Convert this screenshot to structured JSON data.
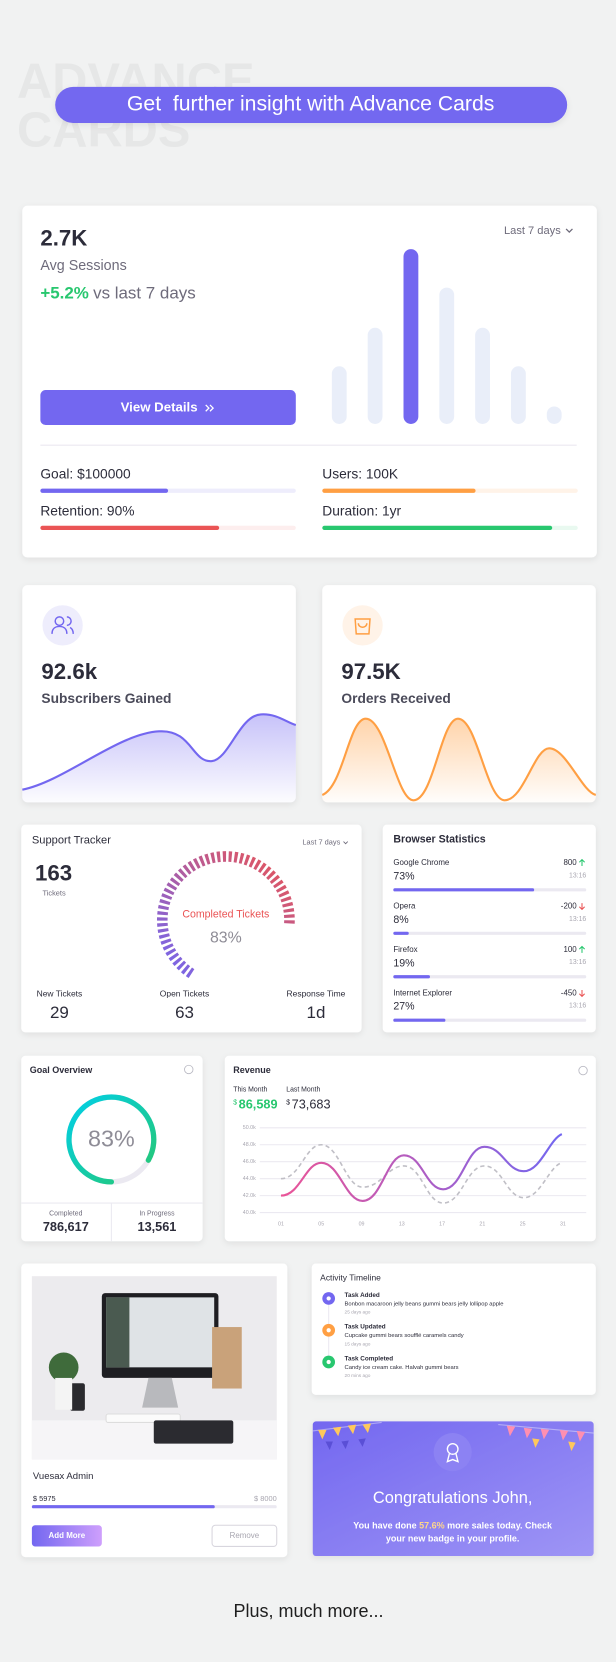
{
  "header": {
    "watermark": [
      "ADVANCE",
      "CARDS"
    ],
    "banner": "Get  further insight with Advance Cards"
  },
  "sessions": {
    "value": "2.7K",
    "label": "Avg Sessions",
    "change": "+5.2%",
    "comparison": "vs last 7 days",
    "period": "Last 7 days",
    "button": "View Details",
    "bars": [
      33,
      55,
      100,
      78,
      55,
      33,
      10
    ],
    "bar_color": "#e9eef9",
    "highlight": 2,
    "highlight_color": "#7367f0",
    "metrics": [
      {
        "label": "Goal: $100000",
        "progress": 50,
        "color": "#7367f0",
        "track": "#eeedfc"
      },
      {
        "label": "Users: 100K",
        "progress": 60,
        "color": "#ff9f43",
        "track": "#fff3e8"
      },
      {
        "label": "Retention: 90%",
        "progress": 70,
        "color": "#ea5455",
        "track": "#fdeeee"
      },
      {
        "label": "Duration: 1yr",
        "progress": 90,
        "color": "#28c76f",
        "track": "#e9f9f0"
      }
    ]
  },
  "subscribers": {
    "value": "92.6k",
    "label": "Subscribers Gained"
  },
  "orders": {
    "value": "97.5K",
    "label": "Orders Received"
  },
  "support": {
    "title": "Support Tracker",
    "period": "Last 7 days",
    "count": "163",
    "count_label": "Tickets",
    "gauge_label": "Completed Tickets",
    "gauge_value": "83%",
    "stats": [
      {
        "label": "New Tickets",
        "value": "29"
      },
      {
        "label": "Open Tickets",
        "value": "63"
      },
      {
        "label": "Response Time",
        "value": "1d"
      }
    ]
  },
  "browsers": {
    "title": "Browser Statistics",
    "items": [
      {
        "name": "Google Chrome",
        "percent": 73,
        "percent_label": "73%",
        "change": 800,
        "time": "13:16"
      },
      {
        "name": "Opera",
        "percent": 8,
        "percent_label": "8%",
        "change": -200,
        "time": "13:16"
      },
      {
        "name": "Firefox",
        "percent": 19,
        "percent_label": "19%",
        "change": 100,
        "time": "13:16"
      },
      {
        "name": "Internet Explorer",
        "percent": 27,
        "percent_label": "27%",
        "change": -450,
        "time": "13:16"
      }
    ]
  },
  "goal": {
    "title": "Goal Overview",
    "percent": 83,
    "percent_label": "83%",
    "completed_label": "Completed",
    "completed": "786,617",
    "progress_label": "In Progress",
    "in_progress": "13,561"
  },
  "revenue": {
    "title": "Revenue",
    "this_month_label": "This Month",
    "this_month_currency": "$",
    "this_month": "86,589",
    "last_month_label": "Last Month",
    "last_month_currency": "$",
    "last_month": "73,683",
    "y_labels": [
      "50.0k",
      "48.0k",
      "46.0k",
      "44.0k",
      "42.0k",
      "40.0k"
    ],
    "x_labels": [
      "01",
      "05",
      "09",
      "13",
      "17",
      "21",
      "25",
      "31"
    ]
  },
  "product": {
    "name": "Vuesax Admin",
    "currency": "$",
    "current": 5975,
    "target_currency": "$",
    "target": 8000,
    "primary_button": "Add More",
    "secondary_button": "Remove"
  },
  "timeline": {
    "title": "Activity Timeline",
    "items": [
      {
        "title": "Task Added",
        "text": "Bonbon macaroon jelly beans gummi bears jelly lollipop apple",
        "time": "25 days ago",
        "color": "#7367f0"
      },
      {
        "title": "Task Updated",
        "text": "Cupcake gummi bears soufflé caramels candy",
        "time": "15 days ago",
        "color": "#ff9f43"
      },
      {
        "title": "Task Completed",
        "text": "Candy ice cream cake. Halvah gummi bears",
        "time": "20 mins ago",
        "color": "#28c76f"
      }
    ]
  },
  "congrats": {
    "title": "Congratulations John,",
    "message_start": "You have done ",
    "message_highlight": "57.6%",
    "message_line1_end": " more sales today. Check",
    "message_line2": "your new badge in your profile."
  },
  "footer": "Plus, much more..."
}
